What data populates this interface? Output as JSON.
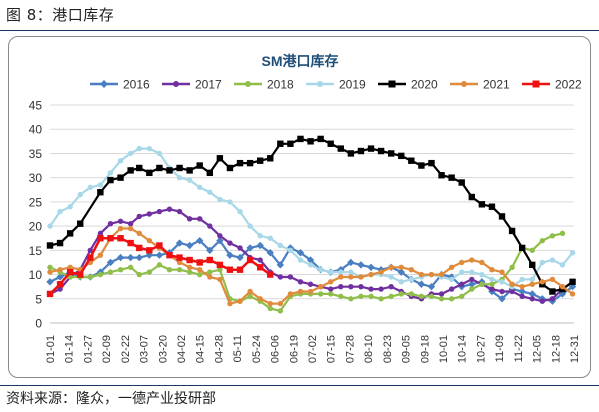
{
  "figure_title": "图 8：港口库存",
  "source_note": "资料来源：隆众，一德产业投研部",
  "chart_data": {
    "type": "line",
    "title": "SM港口库存",
    "xlabel": "",
    "ylabel": "",
    "ylim": [
      0,
      45
    ],
    "yticks": [
      0,
      5,
      10,
      15,
      20,
      25,
      30,
      35,
      40,
      45
    ],
    "grid": true,
    "legend_position": "top",
    "x_tick_labels": [
      "01-01",
      "01-14",
      "01-27",
      "02-09",
      "02-22",
      "03-07",
      "03-20",
      "04-02",
      "04-15",
      "04-28",
      "05-11",
      "05-24",
      "06-06",
      "06-19",
      "07-02",
      "07-15",
      "07-28",
      "08-10",
      "08-23",
      "09-05",
      "09-18",
      "10-01",
      "10-14",
      "10-27",
      "11-09",
      "11-22",
      "12-05",
      "12-18",
      "12-31"
    ],
    "series": [
      {
        "name": "2016",
        "color": "#4a7fc1",
        "marker": "diamond",
        "x": [
          "01-01",
          "01-08",
          "01-15",
          "01-22",
          "01-29",
          "02-05",
          "02-12",
          "02-19",
          "02-26",
          "03-04",
          "03-11",
          "03-18",
          "03-25",
          "04-01",
          "04-08",
          "04-15",
          "04-22",
          "04-29",
          "05-06",
          "05-13",
          "05-20",
          "05-27",
          "06-03",
          "06-10",
          "06-17",
          "06-24",
          "07-01",
          "07-08",
          "07-15",
          "07-22",
          "07-29",
          "08-05",
          "08-12",
          "08-19",
          "08-26",
          "09-02",
          "09-09",
          "09-16",
          "09-23",
          "09-30",
          "10-07",
          "10-14",
          "10-21",
          "10-28",
          "11-04",
          "11-11",
          "11-18",
          "11-25",
          "12-02",
          "12-09",
          "12-16",
          "12-23",
          "12-30"
        ],
        "y": [
          8.5,
          9.5,
          10.5,
          9.5,
          9.5,
          10.5,
          12.5,
          13.5,
          13.5,
          13.5,
          14.0,
          14.0,
          14.5,
          16.5,
          16.0,
          17.0,
          15.0,
          17.0,
          14.0,
          13.5,
          15.5,
          16.0,
          14.5,
          12.0,
          15.5,
          14.5,
          13.0,
          11.0,
          10.5,
          11.0,
          12.5,
          12.0,
          11.5,
          11.0,
          11.5,
          10.5,
          9.0,
          8.0,
          7.5,
          10.0,
          9.5,
          7.5,
          8.0,
          8.5,
          6.5,
          5.0,
          7.0,
          6.5,
          6.0,
          5.0,
          4.5,
          6.0,
          7.5
        ]
      },
      {
        "name": "2017",
        "color": "#7030a0",
        "marker": "circle",
        "x": [
          "01-01",
          "01-08",
          "01-15",
          "01-22",
          "01-29",
          "02-05",
          "02-12",
          "02-19",
          "02-26",
          "03-04",
          "03-11",
          "03-18",
          "03-25",
          "04-01",
          "04-08",
          "04-15",
          "04-22",
          "04-29",
          "05-06",
          "05-13",
          "05-20",
          "05-27",
          "06-03",
          "06-10",
          "06-17",
          "06-24",
          "07-01",
          "07-08",
          "07-15",
          "07-22",
          "07-29",
          "08-05",
          "08-12",
          "08-19",
          "08-26",
          "09-02",
          "09-09",
          "09-16",
          "09-23",
          "09-30",
          "10-07",
          "10-14",
          "10-21",
          "10-28",
          "11-04",
          "11-11",
          "11-18",
          "11-25",
          "12-02",
          "12-09",
          "12-16",
          "12-23",
          "12-30"
        ],
        "y": [
          6.0,
          7.0,
          9.5,
          11.0,
          15.0,
          18.5,
          20.5,
          21.0,
          20.5,
          22.0,
          22.5,
          23.0,
          23.5,
          23.0,
          21.5,
          21.5,
          20.0,
          18.0,
          16.5,
          15.5,
          13.5,
          13.0,
          10.5,
          9.5,
          9.5,
          8.5,
          8.0,
          7.5,
          7.0,
          7.5,
          7.5,
          7.5,
          7.0,
          7.0,
          7.5,
          6.5,
          5.5,
          5.0,
          6.0,
          6.0,
          7.0,
          8.0,
          9.0,
          8.0,
          7.0,
          6.5,
          6.5,
          5.5,
          5.0,
          4.5,
          5.0,
          7.0,
          8.5
        ]
      },
      {
        "name": "2018",
        "color": "#8fbf4a",
        "marker": "circle",
        "x": [
          "01-01",
          "01-08",
          "01-15",
          "01-22",
          "01-29",
          "02-05",
          "02-12",
          "02-19",
          "02-26",
          "03-04",
          "03-11",
          "03-18",
          "03-25",
          "04-01",
          "04-08",
          "04-15",
          "04-22",
          "04-29",
          "05-06",
          "05-13",
          "05-20",
          "05-27",
          "06-03",
          "06-10",
          "06-17",
          "06-24",
          "07-01",
          "07-08",
          "07-15",
          "07-22",
          "07-29",
          "08-05",
          "08-12",
          "08-19",
          "08-26",
          "09-02",
          "09-09",
          "09-16",
          "09-23",
          "09-30",
          "10-07",
          "10-14",
          "10-21",
          "10-28",
          "11-04",
          "11-11",
          "11-18",
          "11-25",
          "12-02",
          "12-09",
          "12-16",
          "12-23"
        ],
        "y": [
          11.5,
          10.5,
          9.5,
          9.5,
          9.5,
          10.0,
          10.5,
          11.0,
          11.5,
          10.0,
          10.5,
          12.0,
          11.0,
          11.0,
          10.5,
          10.0,
          10.5,
          11.0,
          5.0,
          4.5,
          5.5,
          4.5,
          3.0,
          2.5,
          5.5,
          6.0,
          6.0,
          6.0,
          6.0,
          5.5,
          5.0,
          5.5,
          5.5,
          5.0,
          5.5,
          6.0,
          6.0,
          5.5,
          5.5,
          5.0,
          5.0,
          5.5,
          7.0,
          8.0,
          8.0,
          9.0,
          11.5,
          15.5,
          15.0,
          17.0,
          18.0,
          18.5
        ]
      },
      {
        "name": "2019",
        "color": "#a8d8e8",
        "marker": "circle",
        "x": [
          "01-01",
          "01-08",
          "01-15",
          "01-22",
          "01-29",
          "02-05",
          "02-12",
          "02-19",
          "02-26",
          "03-04",
          "03-11",
          "03-18",
          "03-25",
          "04-01",
          "04-08",
          "04-15",
          "04-22",
          "04-29",
          "05-06",
          "05-13",
          "05-20",
          "05-27",
          "06-03",
          "06-10",
          "06-17",
          "06-24",
          "07-01",
          "07-08",
          "07-15",
          "07-22",
          "07-29",
          "08-05",
          "08-12",
          "08-19",
          "08-26",
          "09-02",
          "09-09",
          "09-16",
          "09-23",
          "09-30",
          "10-07",
          "10-14",
          "10-21",
          "10-28",
          "11-04",
          "11-11",
          "11-18",
          "11-25",
          "12-02",
          "12-09",
          "12-16",
          "12-23",
          "12-30"
        ],
        "y": [
          20.0,
          23.0,
          24.0,
          26.5,
          28.0,
          28.5,
          31.0,
          33.5,
          35.0,
          36.0,
          36.0,
          35.0,
          32.0,
          30.0,
          29.5,
          28.0,
          27.0,
          25.5,
          25.0,
          23.0,
          20.0,
          18.0,
          17.5,
          16.0,
          15.0,
          13.0,
          12.0,
          11.0,
          10.5,
          10.5,
          10.5,
          9.5,
          10.0,
          10.0,
          9.5,
          8.5,
          9.0,
          9.5,
          10.0,
          9.5,
          9.0,
          10.5,
          10.5,
          10.0,
          9.0,
          8.5,
          7.5,
          9.0,
          9.0,
          12.5,
          13.0,
          12.0,
          14.5
        ]
      },
      {
        "name": "2020",
        "color": "#000000",
        "marker": "square",
        "x": [
          "01-01",
          "01-08",
          "01-15",
          "01-22",
          "02-05",
          "02-12",
          "02-19",
          "02-26",
          "03-04",
          "03-11",
          "03-18",
          "03-25",
          "04-01",
          "04-08",
          "04-15",
          "04-22",
          "04-29",
          "05-06",
          "05-13",
          "05-20",
          "05-27",
          "06-03",
          "06-10",
          "06-17",
          "06-24",
          "07-01",
          "07-08",
          "07-15",
          "07-22",
          "07-29",
          "08-05",
          "08-12",
          "08-19",
          "08-26",
          "09-02",
          "09-09",
          "09-16",
          "09-23",
          "09-30",
          "10-07",
          "10-14",
          "10-21",
          "10-28",
          "11-04",
          "11-11",
          "11-18",
          "11-25",
          "12-02",
          "12-09",
          "12-16",
          "12-23",
          "12-30"
        ],
        "y": [
          16.0,
          16.5,
          18.5,
          20.5,
          27.0,
          29.5,
          30.0,
          31.5,
          32.0,
          31.0,
          32.0,
          31.5,
          32.0,
          31.5,
          32.5,
          31.0,
          34.0,
          32.0,
          33.0,
          33.0,
          33.5,
          34.0,
          37.0,
          37.0,
          38.0,
          37.5,
          38.0,
          37.0,
          36.0,
          35.0,
          35.5,
          36.0,
          35.5,
          35.0,
          34.5,
          33.5,
          32.5,
          33.0,
          30.5,
          30.0,
          29.0,
          26.0,
          24.5,
          24.0,
          22.0,
          19.0,
          15.5,
          12.0,
          8.0,
          6.5,
          7.0,
          8.5
        ]
      },
      {
        "name": "2021",
        "color": "#e08a3c",
        "marker": "circle",
        "x": [
          "01-01",
          "01-08",
          "01-15",
          "01-22",
          "01-29",
          "02-05",
          "02-12",
          "02-19",
          "02-26",
          "03-04",
          "03-11",
          "03-18",
          "03-25",
          "04-01",
          "04-08",
          "04-15",
          "04-22",
          "04-29",
          "05-06",
          "05-13",
          "05-20",
          "05-27",
          "06-03",
          "06-10",
          "06-17",
          "06-24",
          "07-01",
          "07-08",
          "07-15",
          "07-22",
          "07-29",
          "08-05",
          "08-12",
          "08-19",
          "08-26",
          "09-02",
          "09-09",
          "09-16",
          "09-23",
          "09-30",
          "10-07",
          "10-14",
          "10-21",
          "10-28",
          "11-04",
          "11-11",
          "11-18",
          "11-25",
          "12-02",
          "12-09",
          "12-16",
          "12-23",
          "12-30"
        ],
        "y": [
          10.5,
          11.0,
          11.5,
          11.0,
          12.5,
          14.0,
          17.5,
          19.5,
          19.5,
          18.5,
          17.0,
          15.5,
          14.0,
          12.5,
          11.5,
          11.0,
          9.5,
          9.0,
          4.0,
          4.5,
          6.5,
          5.0,
          4.0,
          4.0,
          6.0,
          6.5,
          6.5,
          7.5,
          8.5,
          9.5,
          9.5,
          9.5,
          10.0,
          10.5,
          11.5,
          11.5,
          11.0,
          10.0,
          10.0,
          10.0,
          11.5,
          12.5,
          13.0,
          12.5,
          11.0,
          10.5,
          8.0,
          7.5,
          8.0,
          8.5,
          9.0,
          7.5,
          6.0
        ]
      },
      {
        "name": "2022",
        "color": "#ee1111",
        "marker": "square",
        "x": [
          "01-01",
          "01-08",
          "01-15",
          "01-22",
          "01-29",
          "02-05",
          "02-12",
          "02-19",
          "02-26",
          "03-04",
          "03-11",
          "03-18",
          "03-25",
          "04-01",
          "04-08",
          "04-15",
          "04-22",
          "04-29",
          "05-06",
          "05-13",
          "05-20",
          "05-27",
          "06-03"
        ],
        "y": [
          6.0,
          8.0,
          10.5,
          10.0,
          13.5,
          17.5,
          17.5,
          17.5,
          16.5,
          15.5,
          15.0,
          16.0,
          14.0,
          13.5,
          13.0,
          12.5,
          13.0,
          12.0,
          11.0,
          11.0,
          13.0,
          11.5,
          10.0
        ]
      }
    ]
  }
}
